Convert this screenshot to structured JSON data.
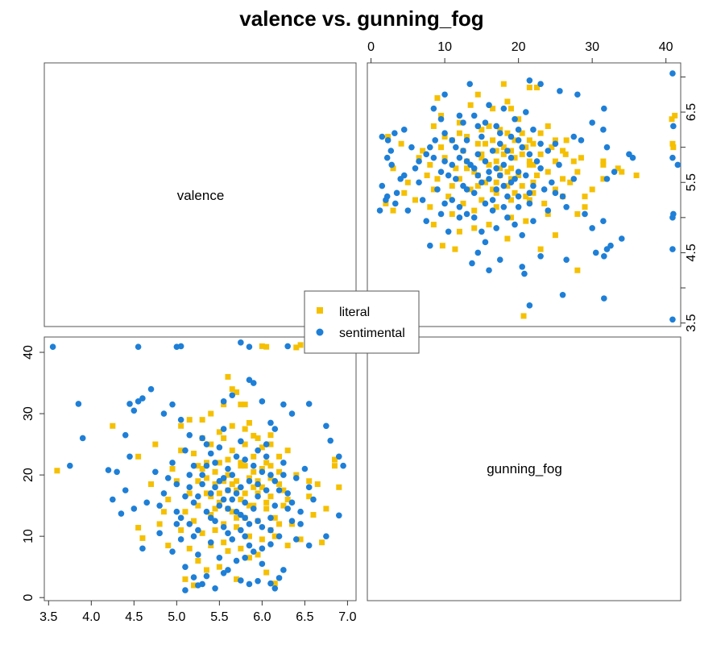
{
  "chart_data": {
    "type": "scatter",
    "layout": "scatter-matrix",
    "title": "valence vs. gunning_fog",
    "variables": [
      "valence",
      "gunning_fog"
    ],
    "axes": {
      "valence": {
        "ticks": [
          3.5,
          4.0,
          4.5,
          5.0,
          5.5,
          6.0,
          6.5,
          7.0
        ],
        "tick_labels": [
          "3.5",
          "4.0",
          "4.5",
          "5.0",
          "5.5",
          "6.0",
          "6.5",
          "7.0"
        ],
        "range": [
          3.45,
          7.1
        ]
      },
      "gunning_fog": {
        "ticks": [
          0,
          10,
          20,
          30,
          40
        ],
        "tick_labels": [
          "0",
          "10",
          "20",
          "30",
          "40"
        ],
        "range": [
          -0.5,
          42.5
        ]
      }
    },
    "right_axis_ticks": [
      "3.5",
      "4.5",
      "5.5",
      "6.5"
    ],
    "legend": {
      "placement": "center",
      "entries": [
        {
          "label": "literal",
          "marker": "square",
          "color": "#F5C000"
        },
        {
          "label": "sentimental",
          "marker": "circle",
          "color": "#1E7FD7"
        }
      ]
    },
    "series": [
      {
        "name": "literal",
        "marker": "square",
        "color": "#F5C000",
        "points": [
          [
            3.6,
            20.7
          ],
          [
            4.55,
            11.4
          ],
          [
            4.6,
            9.7
          ],
          [
            4.9,
            8.5
          ],
          [
            5.05,
            28
          ],
          [
            5.15,
            29
          ],
          [
            5.3,
            29
          ],
          [
            5.4,
            30
          ],
          [
            5.55,
            31.5
          ],
          [
            5.6,
            36
          ],
          [
            5.65,
            34
          ],
          [
            5.7,
            33.5
          ],
          [
            5.75,
            31.5
          ],
          [
            5.8,
            31.5
          ],
          [
            5.85,
            28.5
          ],
          [
            5.9,
            26.4
          ],
          [
            6.0,
            41
          ],
          [
            6.05,
            40.9
          ],
          [
            6.4,
            40.8
          ],
          [
            6.45,
            41.2
          ],
          [
            6.75,
            14.5
          ],
          [
            6.9,
            18
          ],
          [
            6.85,
            21.5
          ],
          [
            6.1,
            26.5
          ],
          [
            6.3,
            24
          ],
          [
            6.55,
            19
          ],
          [
            6.6,
            13.5
          ],
          [
            6.7,
            9
          ],
          [
            4.25,
            28
          ],
          [
            4.55,
            23
          ],
          [
            4.75,
            25
          ],
          [
            5.1,
            3
          ],
          [
            5.2,
            2
          ],
          [
            5.35,
            4.5
          ],
          [
            5.5,
            5
          ],
          [
            5.6,
            7.6
          ],
          [
            5.7,
            3
          ],
          [
            5.85,
            6.5
          ],
          [
            6.05,
            4.1
          ],
          [
            6.15,
            2.3
          ],
          [
            4.9,
            16
          ],
          [
            5.0,
            19
          ],
          [
            5.2,
            23.5
          ],
          [
            5.3,
            21
          ],
          [
            5.4,
            25
          ],
          [
            5.45,
            18.5
          ],
          [
            5.5,
            22
          ],
          [
            5.55,
            26
          ],
          [
            5.6,
            20
          ],
          [
            5.65,
            24
          ],
          [
            5.7,
            17.5
          ],
          [
            5.75,
            21.5
          ],
          [
            5.8,
            25
          ],
          [
            5.85,
            19.5
          ],
          [
            5.9,
            23
          ],
          [
            5.95,
            17
          ],
          [
            6.0,
            21
          ],
          [
            6.05,
            15.5
          ],
          [
            6.1,
            19.5
          ],
          [
            6.15,
            13
          ],
          [
            6.2,
            23
          ],
          [
            6.3,
            16
          ],
          [
            6.4,
            20
          ],
          [
            5.1,
            14
          ],
          [
            5.2,
            12.5
          ],
          [
            5.25,
            15
          ],
          [
            5.3,
            10.5
          ],
          [
            5.35,
            17
          ],
          [
            5.4,
            13.5
          ],
          [
            5.45,
            11
          ],
          [
            5.5,
            15.5
          ],
          [
            5.55,
            12
          ],
          [
            5.6,
            17.5
          ],
          [
            5.65,
            14
          ],
          [
            5.7,
            11.5
          ],
          [
            5.75,
            16
          ],
          [
            5.8,
            13
          ],
          [
            5.85,
            10
          ],
          [
            5.9,
            15
          ],
          [
            5.95,
            12.5
          ],
          [
            6.0,
            9.5
          ],
          [
            6.05,
            14.5
          ],
          [
            6.1,
            11
          ],
          [
            5.25,
            19
          ],
          [
            5.35,
            22
          ],
          [
            5.45,
            20.5
          ],
          [
            5.6,
            22.5
          ],
          [
            5.7,
            19
          ],
          [
            5.8,
            21.5
          ],
          [
            5.9,
            18
          ],
          [
            6.0,
            24.5
          ],
          [
            6.1,
            21.5
          ],
          [
            6.2,
            18.5
          ],
          [
            6.25,
            15
          ],
          [
            6.35,
            12
          ],
          [
            6.45,
            9.5
          ],
          [
            6.55,
            16.5
          ],
          [
            5.05,
            11
          ],
          [
            5.15,
            8
          ],
          [
            5.25,
            6
          ],
          [
            5.4,
            8.5
          ],
          [
            5.55,
            9
          ],
          [
            5.75,
            8
          ],
          [
            5.95,
            7
          ],
          [
            6.15,
            10
          ],
          [
            6.3,
            8.5
          ],
          [
            4.85,
            14
          ],
          [
            4.95,
            21
          ],
          [
            5.05,
            24
          ],
          [
            6.65,
            18.5
          ],
          [
            6.85,
            22.5
          ],
          [
            5.5,
            27
          ],
          [
            5.65,
            28
          ],
          [
            5.8,
            27.5
          ],
          [
            5.95,
            26
          ],
          [
            6.1,
            25
          ],
          [
            4.7,
            18.5
          ],
          [
            4.8,
            12
          ],
          [
            5.3,
            26
          ],
          [
            5.5,
            17
          ],
          [
            5.6,
            14.5
          ],
          [
            5.7,
            13
          ],
          [
            5.9,
            20.5
          ],
          [
            6.0,
            18
          ],
          [
            6.1,
            16.5
          ],
          [
            6.2,
            20.5
          ],
          [
            5.35,
            19.5
          ],
          [
            5.45,
            14.5
          ],
          [
            5.65,
            18.5
          ],
          [
            5.75,
            22
          ],
          [
            5.85,
            15
          ],
          [
            6.05,
            22
          ],
          [
            6.2,
            12
          ],
          [
            5.15,
            17
          ],
          [
            5.25,
            21.5
          ],
          [
            5.4,
            16.5
          ],
          [
            5.55,
            19
          ],
          [
            5.8,
            17
          ],
          [
            5.95,
            19
          ],
          [
            6.25,
            17.5
          ]
        ]
      },
      {
        "name": "sentimental",
        "marker": "circle",
        "color": "#1E7FD7",
        "points": [
          [
            3.55,
            40.9
          ],
          [
            4.55,
            40.9
          ],
          [
            5.0,
            40.9
          ],
          [
            5.05,
            41
          ],
          [
            5.75,
            41.6
          ],
          [
            5.85,
            40.9
          ],
          [
            6.3,
            41
          ],
          [
            7.05,
            40.9
          ],
          [
            3.75,
            21.5
          ],
          [
            3.85,
            31.6
          ],
          [
            3.9,
            26
          ],
          [
            4.2,
            20.8
          ],
          [
            4.25,
            16
          ],
          [
            4.35,
            13.7
          ],
          [
            4.4,
            17.5
          ],
          [
            4.45,
            31.6
          ],
          [
            4.5,
            30.5
          ],
          [
            4.55,
            32
          ],
          [
            4.6,
            32.5
          ],
          [
            4.7,
            34
          ],
          [
            4.85,
            30
          ],
          [
            4.95,
            31.5
          ],
          [
            5.05,
            29
          ],
          [
            5.55,
            32
          ],
          [
            5.65,
            33
          ],
          [
            5.85,
            35.5
          ],
          [
            5.9,
            35
          ],
          [
            6.0,
            32
          ],
          [
            6.1,
            28.5
          ],
          [
            6.15,
            27.5
          ],
          [
            6.25,
            31.5
          ],
          [
            6.35,
            30
          ],
          [
            6.55,
            31.6
          ],
          [
            6.75,
            28
          ],
          [
            6.8,
            25.6
          ],
          [
            6.9,
            23
          ],
          [
            6.95,
            21.5
          ],
          [
            6.9,
            13.4
          ],
          [
            6.75,
            10
          ],
          [
            6.55,
            8.5
          ],
          [
            6.45,
            12
          ],
          [
            4.4,
            26.5
          ],
          [
            4.45,
            23
          ],
          [
            4.3,
            20.5
          ],
          [
            4.5,
            14.5
          ],
          [
            4.6,
            8
          ],
          [
            4.8,
            10.5
          ],
          [
            4.95,
            7.5
          ],
          [
            5.1,
            5
          ],
          [
            5.2,
            3.3
          ],
          [
            5.25,
            2
          ],
          [
            5.35,
            3.5
          ],
          [
            5.45,
            1.5
          ],
          [
            5.55,
            4
          ],
          [
            5.7,
            6
          ],
          [
            5.75,
            2.8
          ],
          [
            5.85,
            2.2
          ],
          [
            5.95,
            2.7
          ],
          [
            6.1,
            2.3
          ],
          [
            6.15,
            1.5
          ],
          [
            6.2,
            3.2
          ],
          [
            6.25,
            4.5
          ],
          [
            5.1,
            1.2
          ],
          [
            5.3,
            2.2
          ],
          [
            5.6,
            4.5
          ],
          [
            5.8,
            6.5
          ],
          [
            6.0,
            5.5
          ],
          [
            6.1,
            8.7
          ],
          [
            4.65,
            15.5
          ],
          [
            4.75,
            20.5
          ],
          [
            4.85,
            17
          ],
          [
            4.95,
            22
          ],
          [
            5.0,
            18.5
          ],
          [
            5.05,
            13
          ],
          [
            5.1,
            24
          ],
          [
            5.15,
            20
          ],
          [
            5.2,
            15.5
          ],
          [
            5.25,
            11
          ],
          [
            5.3,
            26
          ],
          [
            5.35,
            21.5
          ],
          [
            5.4,
            17
          ],
          [
            5.45,
            12.5
          ],
          [
            5.5,
            24.5
          ],
          [
            5.55,
            19.5
          ],
          [
            5.6,
            14.5
          ],
          [
            5.65,
            9.5
          ],
          [
            5.7,
            23
          ],
          [
            5.75,
            18
          ],
          [
            5.8,
            13
          ],
          [
            5.85,
            8.5
          ],
          [
            5.9,
            21.5
          ],
          [
            5.95,
            16.5
          ],
          [
            6.0,
            11.5
          ],
          [
            6.05,
            25
          ],
          [
            6.1,
            20
          ],
          [
            6.15,
            15
          ],
          [
            6.2,
            10
          ],
          [
            6.25,
            22
          ],
          [
            6.3,
            17
          ],
          [
            6.35,
            12.5
          ],
          [
            6.4,
            19.5
          ],
          [
            6.45,
            14
          ],
          [
            6.5,
            21
          ],
          [
            6.6,
            16
          ],
          [
            5.05,
            9.5
          ],
          [
            5.15,
            12
          ],
          [
            5.25,
            16.5
          ],
          [
            5.35,
            14
          ],
          [
            5.45,
            18
          ],
          [
            5.55,
            11.5
          ],
          [
            5.65,
            16
          ],
          [
            5.75,
            13.5
          ],
          [
            5.85,
            19
          ],
          [
            5.95,
            12.5
          ],
          [
            6.05,
            17.5
          ],
          [
            6.15,
            19
          ],
          [
            5.2,
            21.5
          ],
          [
            5.4,
            23.5
          ],
          [
            5.6,
            21
          ],
          [
            5.8,
            22.5
          ],
          [
            6.0,
            20.5
          ],
          [
            6.2,
            17.5
          ],
          [
            5.1,
            16.5
          ],
          [
            5.3,
            18.5
          ],
          [
            5.5,
            15
          ],
          [
            5.7,
            17
          ],
          [
            5.9,
            14.5
          ],
          [
            6.1,
            13
          ],
          [
            5.0,
            14
          ],
          [
            5.2,
            10
          ],
          [
            5.4,
            9
          ],
          [
            5.6,
            10.5
          ],
          [
            5.8,
            10
          ],
          [
            6.0,
            8
          ],
          [
            5.45,
            22
          ],
          [
            5.65,
            20
          ],
          [
            5.75,
            25.5
          ],
          [
            5.95,
            24
          ],
          [
            6.3,
            14.5
          ],
          [
            4.9,
            19.5
          ],
          [
            5.15,
            26.5
          ],
          [
            5.35,
            25
          ],
          [
            5.55,
            27.5
          ],
          [
            6.05,
            23
          ],
          [
            6.4,
            9.5
          ],
          [
            5.25,
            7
          ],
          [
            5.5,
            6.5
          ],
          [
            5.9,
            7.5
          ],
          [
            4.8,
            15
          ],
          [
            5.0,
            12
          ],
          [
            6.55,
            18
          ],
          [
            5.4,
            13
          ],
          [
            5.6,
            17.5
          ],
          [
            5.8,
            15.5
          ],
          [
            5.85,
            12
          ],
          [
            5.5,
            19
          ],
          [
            5.7,
            14
          ],
          [
            5.3,
            20
          ],
          [
            5.95,
            18.5
          ],
          [
            6.1,
            11
          ],
          [
            5.15,
            18
          ],
          [
            5.55,
            16
          ],
          [
            5.75,
            11
          ],
          [
            6.25,
            20
          ],
          [
            6.35,
            15.5
          ]
        ]
      }
    ]
  }
}
